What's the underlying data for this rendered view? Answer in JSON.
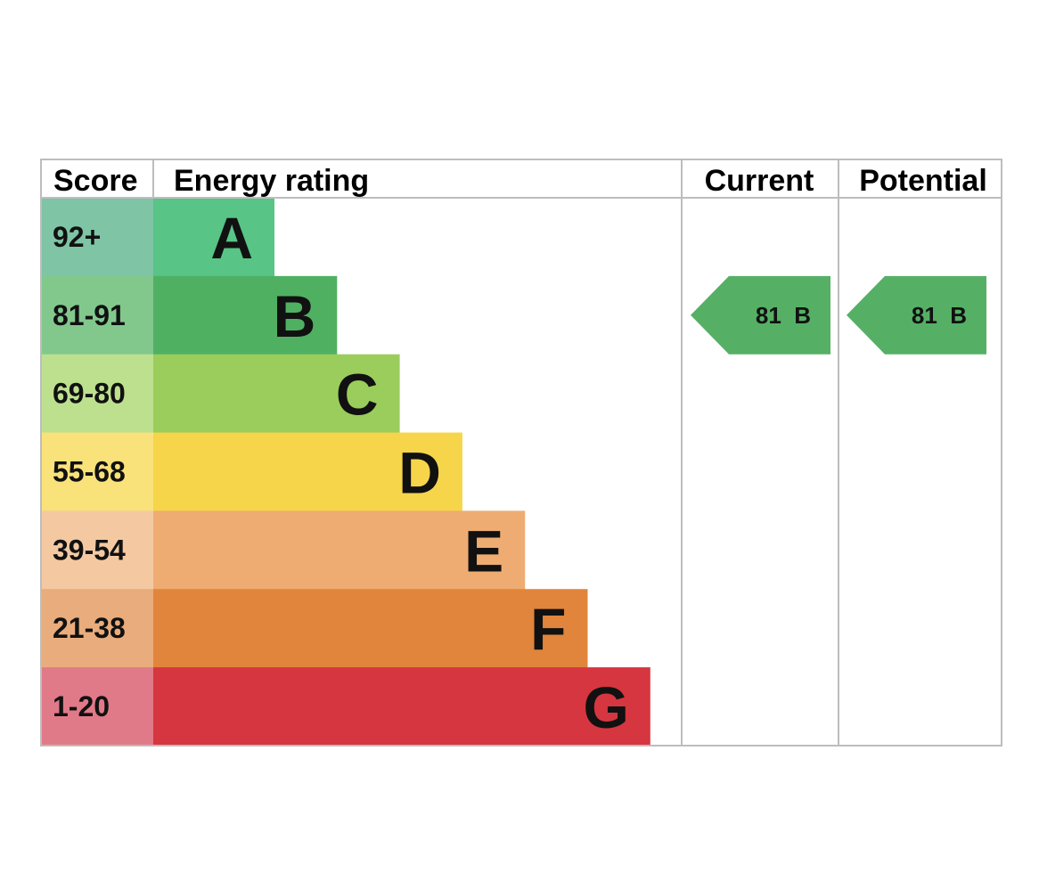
{
  "chart_data": {
    "type": "bar",
    "title": "",
    "headers": {
      "score": "Score",
      "energy_rating": "Energy rating",
      "current": "Current",
      "potential": "Potential"
    },
    "bands": [
      {
        "letter": "A",
        "range": "92+",
        "bar_color": "#58c485",
        "score_color": "#7ec4a5"
      },
      {
        "letter": "B",
        "range": "81-91",
        "bar_color": "#4fb062",
        "score_color": "#82c88d"
      },
      {
        "letter": "C",
        "range": "69-80",
        "bar_color": "#9acd5b",
        "score_color": "#bde08f"
      },
      {
        "letter": "D",
        "range": "55-68",
        "bar_color": "#f6d54a",
        "score_color": "#f9e27a"
      },
      {
        "letter": "E",
        "range": "39-54",
        "bar_color": "#efac72",
        "score_color": "#f4c9a2"
      },
      {
        "letter": "F",
        "range": "21-38",
        "bar_color": "#e0853b",
        "score_color": "#e9ac7c"
      },
      {
        "letter": "G",
        "range": "1-20",
        "bar_color": "#d6363f",
        "score_color": "#e07a88"
      }
    ],
    "current": {
      "value": 81,
      "band": "B",
      "label": "81  B",
      "color": "#55b065"
    },
    "potential": {
      "value": 81,
      "band": "B",
      "label": "81  B",
      "color": "#55b065"
    }
  }
}
